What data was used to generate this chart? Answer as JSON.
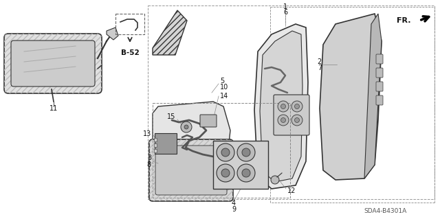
{
  "bg_color": "#ffffff",
  "diagram_code": "SDA4-B4301A",
  "text_color": "#111111",
  "line_color": "#333333",
  "gray_fill": "#d8d8d8",
  "dark_gray": "#888888",
  "hatch_color": "#999999"
}
